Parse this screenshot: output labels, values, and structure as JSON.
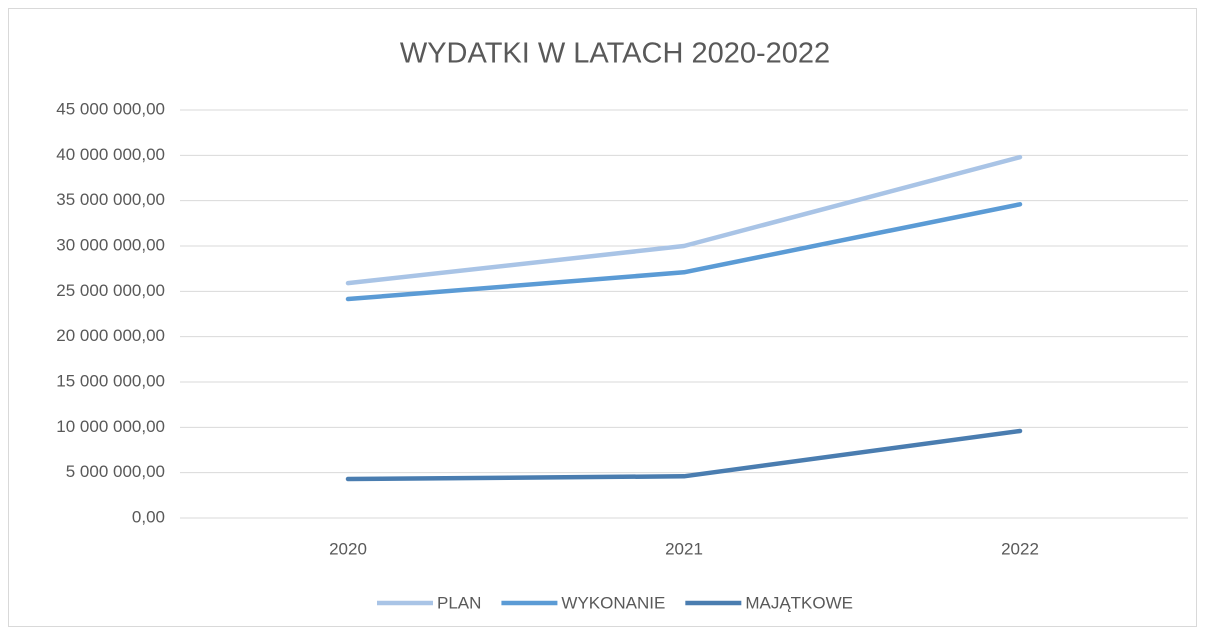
{
  "chart_data": {
    "type": "line",
    "title": "WYDATKI W LATACH 2020-2022",
    "categories": [
      "2020",
      "2021",
      "2022"
    ],
    "series": [
      {
        "name": "PLAN",
        "color": "#a9c4e6",
        "values": [
          25900000,
          30000000,
          39800000
        ]
      },
      {
        "name": "WYKONANIE",
        "color": "#5b9bd5",
        "values": [
          24150000,
          27100000,
          34600000
        ]
      },
      {
        "name": "MAJĄTKOWE",
        "color": "#4a7db0",
        "values": [
          4300000,
          4600000,
          9600000
        ]
      }
    ],
    "ylim": [
      0,
      45000000
    ],
    "yticks": [
      {
        "value": 0,
        "label": "0,00"
      },
      {
        "value": 5000000,
        "label": "5 000 000,00"
      },
      {
        "value": 10000000,
        "label": "10 000 000,00"
      },
      {
        "value": 15000000,
        "label": "15 000 000,00"
      },
      {
        "value": 20000000,
        "label": "20 000 000,00"
      },
      {
        "value": 25000000,
        "label": "25 000 000,00"
      },
      {
        "value": 30000000,
        "label": "30 000 000,00"
      },
      {
        "value": 35000000,
        "label": "35 000 000,00"
      },
      {
        "value": 40000000,
        "label": "40 000 000,00"
      },
      {
        "value": 45000000,
        "label": "45 000 000,00"
      }
    ],
    "grid": true,
    "legend": "bottom"
  }
}
